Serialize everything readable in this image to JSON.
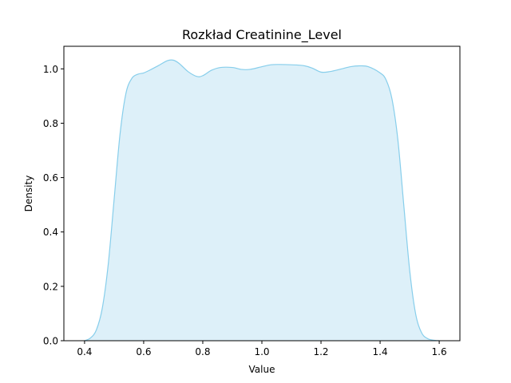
{
  "chart_data": {
    "type": "area",
    "title": "Rozkład Creatinine_Level",
    "xlabel": "Value",
    "ylabel": "Density",
    "xlim": [
      0.33,
      1.67
    ],
    "ylim": [
      0.0,
      1.083
    ],
    "x_ticks": [
      0.4,
      0.6,
      0.8,
      1.0,
      1.2,
      1.4,
      1.6
    ],
    "x_tick_labels": [
      "0.4",
      "0.6",
      "0.8",
      "1.0",
      "1.2",
      "1.4",
      "1.6"
    ],
    "y_ticks": [
      0.0,
      0.2,
      0.4,
      0.6,
      0.8,
      1.0
    ],
    "y_tick_labels": [
      "0.0",
      "0.2",
      "0.4",
      "0.6",
      "0.8",
      "1.0"
    ],
    "grid": false,
    "series": [
      {
        "line_color": "#87ceeb",
        "fill_color": "#ddf0f9",
        "x": [
          0.4,
          0.42,
          0.44,
          0.46,
          0.48,
          0.5,
          0.52,
          0.54,
          0.56,
          0.58,
          0.6,
          0.62,
          0.65,
          0.68,
          0.7,
          0.72,
          0.75,
          0.78,
          0.8,
          0.83,
          0.86,
          0.9,
          0.93,
          0.96,
          1.0,
          1.03,
          1.06,
          1.1,
          1.14,
          1.17,
          1.2,
          1.23,
          1.27,
          1.3,
          1.33,
          1.36,
          1.4,
          1.42,
          1.44,
          1.46,
          1.48,
          1.5,
          1.52,
          1.54,
          1.56,
          1.58,
          1.6
        ],
        "y": [
          0.0,
          0.01,
          0.04,
          0.12,
          0.28,
          0.52,
          0.76,
          0.91,
          0.965,
          0.98,
          0.985,
          0.995,
          1.012,
          1.03,
          1.032,
          1.02,
          0.99,
          0.972,
          0.975,
          0.995,
          1.005,
          1.005,
          0.998,
          0.998,
          1.008,
          1.015,
          1.016,
          1.015,
          1.012,
          1.003,
          0.988,
          0.99,
          1.0,
          1.008,
          1.011,
          1.008,
          0.985,
          0.96,
          0.89,
          0.74,
          0.5,
          0.26,
          0.1,
          0.03,
          0.008,
          0.002,
          0.0
        ]
      }
    ]
  }
}
